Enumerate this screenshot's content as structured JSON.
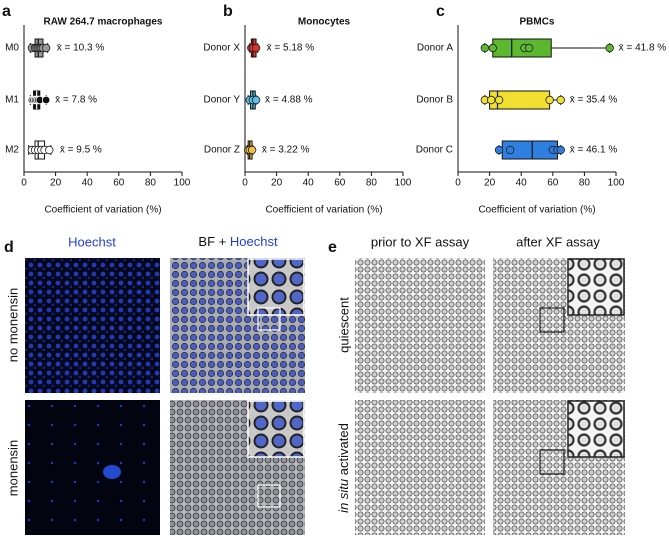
{
  "chart_data": [
    {
      "type": "box",
      "panel": "a",
      "title": "RAW 264.7 macrophages",
      "xlabel": "Coefficient of variation (%)",
      "categories": [
        "M0",
        "M1",
        "M2"
      ],
      "boxes": [
        {
          "min": 4,
          "q1": 7,
          "median": 9,
          "q3": 12,
          "max": 15,
          "points": [
            5,
            7,
            8,
            9,
            10,
            11,
            12,
            14
          ],
          "color": "#9a9a9a"
        },
        {
          "min": 4,
          "q1": 6,
          "median": 8,
          "q3": 10,
          "max": 14,
          "points": [
            5,
            6,
            7,
            8,
            9,
            10,
            14
          ],
          "color": "#111111"
        },
        {
          "min": 3,
          "q1": 7,
          "median": 9,
          "q3": 13,
          "max": 17,
          "points": [
            5,
            7,
            9,
            11,
            13,
            16
          ],
          "color": "#ffffff"
        }
      ],
      "values": [
        10.3,
        7.8,
        9.5
      ],
      "value_labels": [
        "x̄ = 10.3 %",
        "x̄ = 7.8 %",
        "x̄ = 9.5 %"
      ],
      "xlim": [
        0,
        100
      ],
      "xticks": [
        0,
        20,
        40,
        60,
        80,
        100
      ]
    },
    {
      "type": "box",
      "panel": "b",
      "title": "Monocytes",
      "xlabel": "Coefficient of variation (%)",
      "categories": [
        "Donor X",
        "Donor Y",
        "Donor Z"
      ],
      "boxes": [
        {
          "min": 3,
          "q1": 4,
          "median": 5,
          "q3": 7,
          "max": 8,
          "points": [
            4,
            5,
            7
          ],
          "color": "#d9312b"
        },
        {
          "min": 2,
          "q1": 3.5,
          "median": 5,
          "q3": 6.5,
          "max": 7,
          "points": [
            3,
            5,
            7
          ],
          "color": "#5bc0e8"
        },
        {
          "min": 1.5,
          "q1": 2,
          "median": 3,
          "q3": 4.5,
          "max": 5,
          "points": [
            2,
            3,
            4.5
          ],
          "color": "#f0c040"
        }
      ],
      "values": [
        5.18,
        4.88,
        3.22
      ],
      "value_labels": [
        "x̄ = 5.18 %",
        "x̄ = 4.88 %",
        "x̄ = 3.22 %"
      ],
      "xlim": [
        0,
        100
      ],
      "xticks": [
        0,
        20,
        40,
        60,
        80,
        100
      ]
    },
    {
      "type": "box",
      "panel": "c",
      "title": "PBMCs",
      "xlabel": "Coefficient of variation (%)",
      "categories": [
        "Donor A",
        "Donor B",
        "Donor C"
      ],
      "boxes": [
        {
          "min": 17,
          "q1": 22,
          "median": 34,
          "q3": 59,
          "max": 96,
          "points": [
            17,
            22,
            42,
            45,
            96
          ],
          "color": "#5cb82e"
        },
        {
          "min": 17,
          "q1": 20,
          "median": 25,
          "q3": 58,
          "max": 65,
          "points": [
            17,
            21,
            26,
            58,
            65
          ],
          "color": "#f2e030"
        },
        {
          "min": 26,
          "q1": 28,
          "median": 47,
          "q3": 63,
          "max": 65,
          "points": [
            26,
            33,
            60,
            63,
            65
          ],
          "color": "#2e7fe0"
        }
      ],
      "values": [
        41.8,
        35.4,
        46.1
      ],
      "value_labels": [
        "x̄ = 41.8 %",
        "x̄ = 35.4 %",
        "x̄ = 46.1 %"
      ],
      "xlim": [
        0,
        100
      ],
      "xticks": [
        0,
        20,
        40,
        60,
        80,
        100
      ]
    }
  ],
  "panel_d": {
    "label": "d",
    "columns": [
      "Hoechst",
      [
        "BF +",
        "Hoechst"
      ]
    ],
    "rows": [
      "no monensin",
      "monensin"
    ]
  },
  "panel_e": {
    "label": "e",
    "columns": [
      "prior to XF assay",
      "after XF assay"
    ],
    "rows": [
      "quiescent",
      [
        "in situ",
        "activated"
      ]
    ]
  }
}
